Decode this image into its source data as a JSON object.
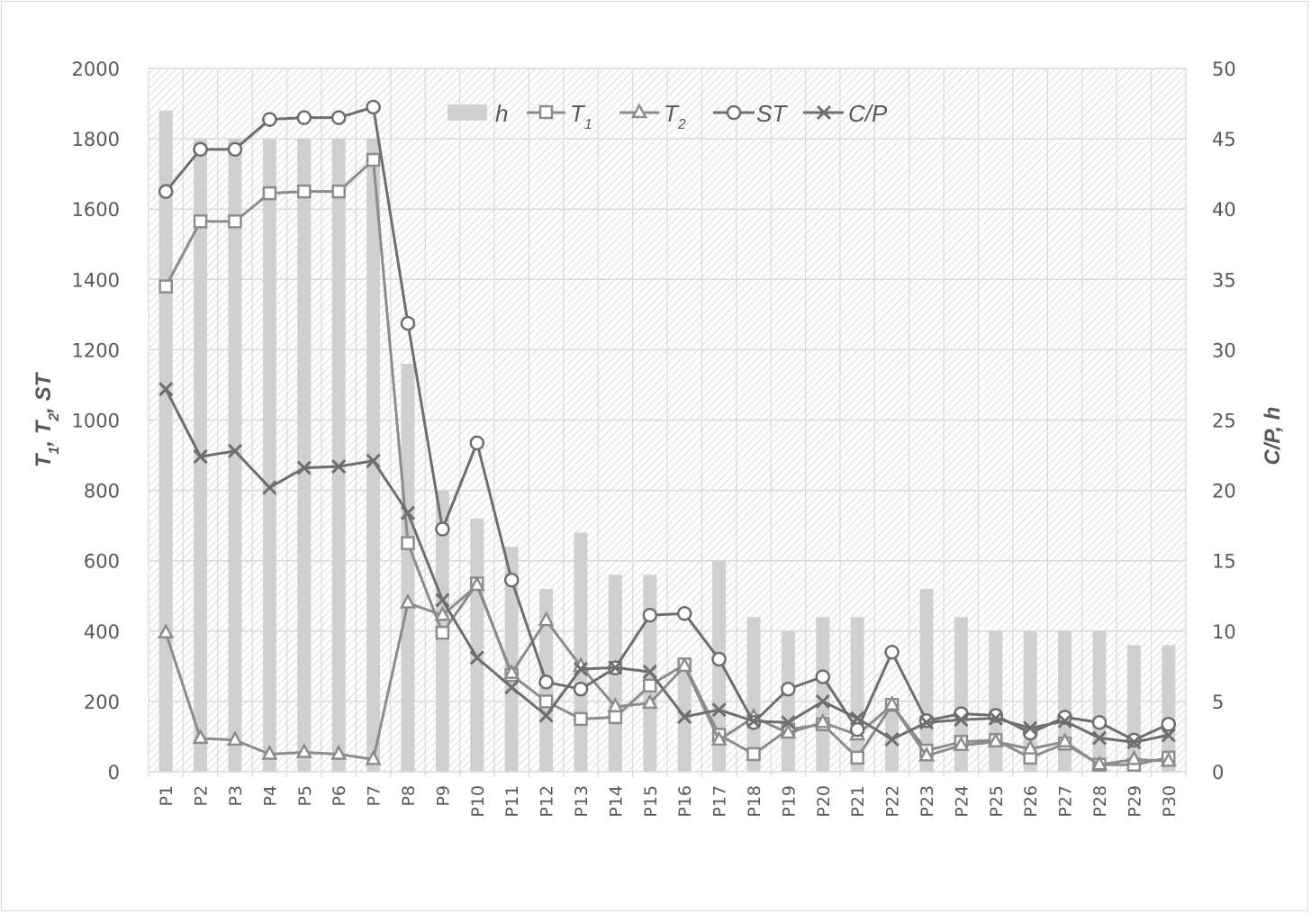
{
  "chart_data": {
    "type": "bar+line",
    "title": "",
    "categories": [
      "P1",
      "P2",
      "P3",
      "P4",
      "P5",
      "P6",
      "P7",
      "P8",
      "P9",
      "P10",
      "P11",
      "P12",
      "P13",
      "P14",
      "P15",
      "P16",
      "P17",
      "P18",
      "P19",
      "P20",
      "P21",
      "P22",
      "P23",
      "P24",
      "P25",
      "P26",
      "P27",
      "P28",
      "P29",
      "P30"
    ],
    "left_axis": {
      "label": "T1, T2, ST",
      "ylim": [
        0,
        2000
      ],
      "ticks": [
        0,
        200,
        400,
        600,
        800,
        1000,
        1200,
        1400,
        1600,
        1800,
        2000
      ]
    },
    "right_axis": {
      "label": "C/P, h",
      "ylim": [
        0,
        50
      ],
      "ticks": [
        0,
        5,
        10,
        15,
        20,
        25,
        30,
        35,
        40,
        45,
        50
      ]
    },
    "series": [
      {
        "name": "h",
        "type": "bar",
        "axis": "right",
        "color": "#d0d0d0",
        "values": [
          47,
          45,
          45,
          45,
          45,
          45,
          45,
          29,
          20,
          18,
          16,
          13,
          17,
          14,
          14,
          8,
          15,
          11,
          10,
          11,
          11,
          5,
          13,
          11,
          10,
          10,
          10,
          10,
          9,
          9
        ]
      },
      {
        "name": "T1",
        "type": "line",
        "axis": "left",
        "marker": "square",
        "color": "#8c8c8c",
        "values": [
          1380,
          1565,
          1565,
          1645,
          1650,
          1650,
          1740,
          650,
          395,
          535,
          275,
          200,
          150,
          155,
          245,
          305,
          105,
          50,
          120,
          135,
          40,
          190,
          60,
          85,
          90,
          40,
          80,
          20,
          20,
          40
        ]
      },
      {
        "name": "T2",
        "type": "line",
        "axis": "left",
        "marker": "triangle",
        "color": "#8c8c8c",
        "values": [
          395,
          95,
          90,
          50,
          55,
          50,
          35,
          480,
          445,
          530,
          280,
          430,
          300,
          185,
          195,
          300,
          90,
          155,
          110,
          140,
          105,
          190,
          45,
          75,
          85,
          65,
          85,
          20,
          35,
          30
        ]
      },
      {
        "name": "ST",
        "type": "line",
        "axis": "left",
        "marker": "circle",
        "color": "#6e6e6e",
        "values": [
          1650,
          1770,
          1770,
          1855,
          1860,
          1860,
          1890,
          1275,
          690,
          935,
          545,
          255,
          235,
          295,
          445,
          450,
          320,
          140,
          235,
          270,
          120,
          340,
          145,
          165,
          160,
          110,
          155,
          140,
          90,
          135
        ]
      },
      {
        "name": "C/P",
        "type": "line",
        "axis": "right",
        "marker": "x",
        "color": "#6e6e6e",
        "values": [
          27.2,
          22.4,
          22.8,
          20.2,
          21.6,
          21.7,
          22.1,
          18.4,
          12.2,
          8.1,
          6.0,
          4.0,
          7.3,
          7.4,
          7.1,
          3.9,
          4.4,
          3.6,
          3.5,
          5.0,
          3.8,
          2.3,
          3.5,
          3.7,
          3.8,
          3.1,
          3.6,
          2.4,
          2.1,
          2.6
        ]
      }
    ],
    "legend": {
      "position": "top-inside",
      "entries": [
        "h",
        "T1",
        "T2",
        "ST",
        "C/P"
      ]
    },
    "grid": true
  },
  "axes": {
    "left_title": {
      "main": "T",
      "s1": "1",
      "sep1": ", T",
      "s2": "2",
      "sep2": ", ST"
    },
    "right_title": "C/P, h",
    "left_ticks": [
      "0",
      "200",
      "400",
      "600",
      "800",
      "1000",
      "1200",
      "1400",
      "1600",
      "1800",
      "2000"
    ],
    "right_ticks": [
      "0",
      "5",
      "10",
      "15",
      "20",
      "25",
      "30",
      "35",
      "40",
      "45",
      "50"
    ]
  },
  "legend": {
    "h": "h",
    "t1_main": "T",
    "t1_sub": "1",
    "t2_main": "T",
    "t2_sub": "2",
    "st": "ST",
    "cp": "C/P"
  }
}
